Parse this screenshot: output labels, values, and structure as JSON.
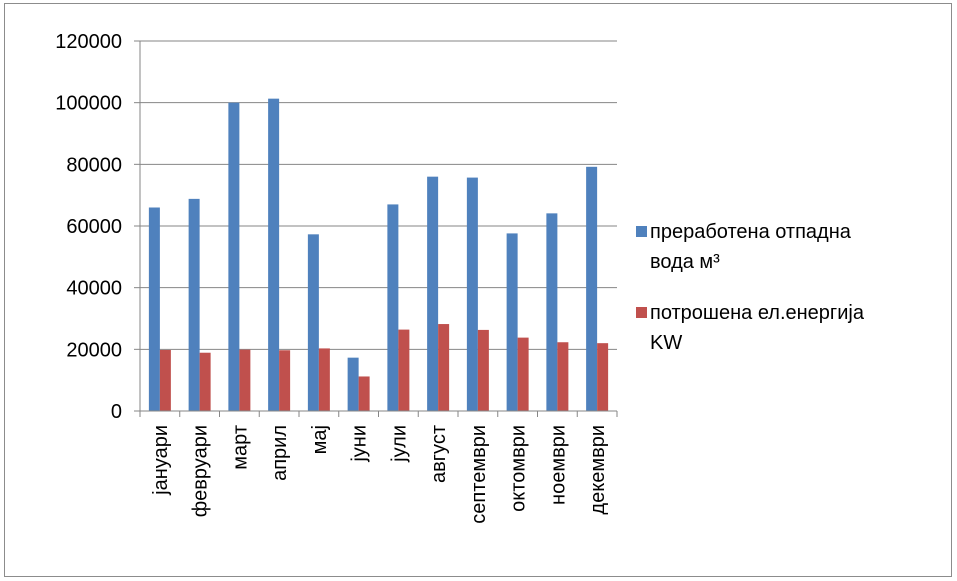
{
  "chart_data": {
    "type": "bar",
    "categories": [
      "јануари",
      "февруари",
      "март",
      "април",
      "мај",
      "јуни",
      "јули",
      "август",
      "септември",
      "октомври",
      "ноември",
      "декември"
    ],
    "series": [
      {
        "name": "преработена отпадна вода м³",
        "legend_lines": [
          "преработена отпадна",
          "вода м³"
        ],
        "color": "#4f81bd",
        "values": [
          66000,
          68800,
          100000,
          101300,
          57300,
          17300,
          67000,
          76000,
          75700,
          57600,
          64100,
          79200
        ]
      },
      {
        "name": "потрошена ел.енергија KW",
        "legend_lines": [
          "потрошена ел.енергија",
          "KW"
        ],
        "color": "#c0504d",
        "values": [
          19800,
          18900,
          19900,
          19700,
          20300,
          11200,
          26400,
          28200,
          26300,
          23800,
          22300,
          22000
        ]
      }
    ],
    "ylim": [
      0,
      120000
    ],
    "yticks": [
      "0",
      "20000",
      "40000",
      "60000",
      "80000",
      "100000",
      "120000"
    ],
    "grid": true,
    "legend_position": "right",
    "title": "",
    "xlabel": "",
    "ylabel": ""
  }
}
